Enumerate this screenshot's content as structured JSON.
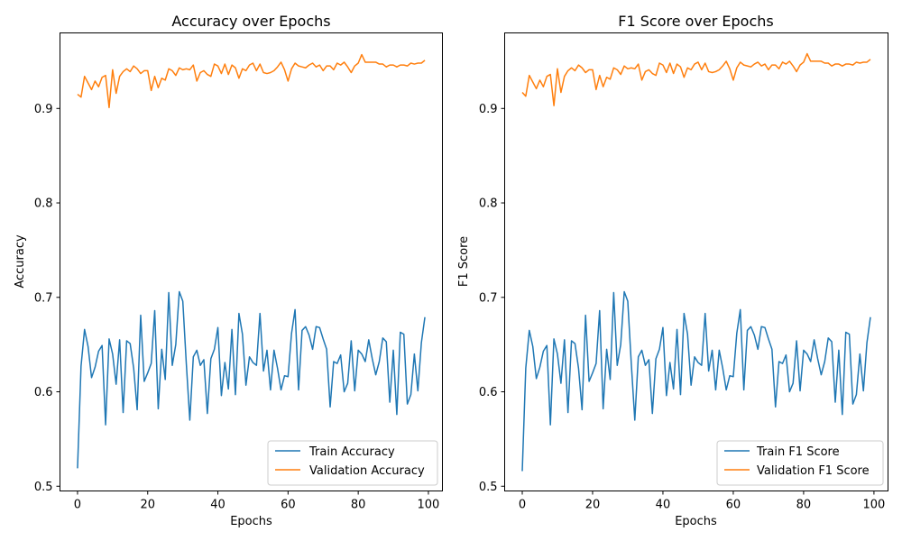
{
  "chart_data": [
    {
      "type": "line",
      "title": "Accuracy over Epochs",
      "xlabel": "Epochs",
      "ylabel": "Accuracy",
      "xlim": [
        -5,
        104
      ],
      "ylim": [
        0.495,
        0.98
      ],
      "xticks": [
        0,
        20,
        40,
        60,
        80,
        100
      ],
      "yticks": [
        0.5,
        0.6,
        0.7,
        0.8,
        0.9
      ],
      "xtick_labels": [
        "0",
        "20",
        "40",
        "60",
        "80",
        "100"
      ],
      "ytick_labels": [
        "0.5",
        "0.6",
        "0.7",
        "0.8",
        "0.9"
      ],
      "legend_position": "lower-right",
      "grid": false,
      "series": [
        {
          "name": "Train Accuracy",
          "color": "#1f77b4",
          "values": [
            0.519,
            0.627,
            0.666,
            0.648,
            0.615,
            0.626,
            0.643,
            0.649,
            0.565,
            0.656,
            0.64,
            0.608,
            0.655,
            0.578,
            0.654,
            0.651,
            0.625,
            0.581,
            0.681,
            0.611,
            0.62,
            0.63,
            0.686,
            0.582,
            0.645,
            0.613,
            0.705,
            0.628,
            0.65,
            0.706,
            0.696,
            0.63,
            0.57,
            0.637,
            0.644,
            0.628,
            0.634,
            0.577,
            0.635,
            0.645,
            0.668,
            0.596,
            0.631,
            0.603,
            0.666,
            0.597,
            0.683,
            0.661,
            0.607,
            0.637,
            0.631,
            0.628,
            0.683,
            0.622,
            0.644,
            0.602,
            0.644,
            0.625,
            0.602,
            0.617,
            0.616,
            0.662,
            0.687,
            0.602,
            0.665,
            0.669,
            0.66,
            0.645,
            0.669,
            0.668,
            0.656,
            0.645,
            0.584,
            0.632,
            0.63,
            0.639,
            0.6,
            0.609,
            0.654,
            0.601,
            0.644,
            0.64,
            0.632,
            0.655,
            0.635,
            0.618,
            0.632,
            0.657,
            0.653,
            0.589,
            0.644,
            0.576,
            0.663,
            0.661,
            0.587,
            0.597,
            0.64,
            0.601,
            0.652,
            0.679
          ]
        },
        {
          "name": "Validation Accuracy",
          "color": "#ff7f0e",
          "values": [
            0.915,
            0.912,
            0.934,
            0.927,
            0.92,
            0.929,
            0.923,
            0.933,
            0.935,
            0.901,
            0.941,
            0.916,
            0.934,
            0.939,
            0.942,
            0.939,
            0.945,
            0.942,
            0.937,
            0.94,
            0.94,
            0.919,
            0.934,
            0.922,
            0.932,
            0.93,
            0.942,
            0.94,
            0.935,
            0.943,
            0.941,
            0.942,
            0.941,
            0.946,
            0.929,
            0.938,
            0.94,
            0.936,
            0.934,
            0.947,
            0.945,
            0.937,
            0.947,
            0.936,
            0.946,
            0.943,
            0.932,
            0.942,
            0.94,
            0.946,
            0.948,
            0.94,
            0.947,
            0.938,
            0.937,
            0.938,
            0.94,
            0.944,
            0.949,
            0.941,
            0.929,
            0.942,
            0.948,
            0.945,
            0.944,
            0.943,
            0.946,
            0.948,
            0.944,
            0.946,
            0.94,
            0.945,
            0.945,
            0.941,
            0.948,
            0.946,
            0.949,
            0.944,
            0.938,
            0.945,
            0.948,
            0.957,
            0.949,
            0.949,
            0.949,
            0.949,
            0.947,
            0.947,
            0.944,
            0.946,
            0.946,
            0.944,
            0.946,
            0.946,
            0.945,
            0.948,
            0.947,
            0.948,
            0.948,
            0.951
          ]
        }
      ]
    },
    {
      "type": "line",
      "title": "F1 Score over Epochs",
      "xlabel": "Epochs",
      "ylabel": "F1 Score",
      "xlim": [
        -5,
        104
      ],
      "ylim": [
        0.495,
        0.98
      ],
      "xticks": [
        0,
        20,
        40,
        60,
        80,
        100
      ],
      "yticks": [
        0.5,
        0.6,
        0.7,
        0.8,
        0.9
      ],
      "xtick_labels": [
        "0",
        "20",
        "40",
        "60",
        "80",
        "100"
      ],
      "ytick_labels": [
        "0.5",
        "0.6",
        "0.7",
        "0.8",
        "0.9"
      ],
      "legend_position": "lower-right",
      "grid": false,
      "series": [
        {
          "name": "Train F1 Score",
          "color": "#1f77b4",
          "values": [
            0.516,
            0.625,
            0.665,
            0.648,
            0.614,
            0.626,
            0.643,
            0.649,
            0.565,
            0.656,
            0.64,
            0.609,
            0.655,
            0.578,
            0.654,
            0.651,
            0.625,
            0.581,
            0.681,
            0.611,
            0.62,
            0.63,
            0.686,
            0.582,
            0.645,
            0.613,
            0.705,
            0.628,
            0.65,
            0.706,
            0.696,
            0.63,
            0.57,
            0.637,
            0.644,
            0.628,
            0.634,
            0.577,
            0.635,
            0.645,
            0.668,
            0.596,
            0.631,
            0.603,
            0.666,
            0.597,
            0.683,
            0.661,
            0.607,
            0.637,
            0.631,
            0.628,
            0.683,
            0.622,
            0.644,
            0.602,
            0.644,
            0.625,
            0.602,
            0.617,
            0.616,
            0.662,
            0.687,
            0.602,
            0.665,
            0.669,
            0.66,
            0.645,
            0.669,
            0.668,
            0.656,
            0.645,
            0.584,
            0.632,
            0.63,
            0.639,
            0.6,
            0.609,
            0.654,
            0.601,
            0.644,
            0.64,
            0.632,
            0.655,
            0.635,
            0.618,
            0.632,
            0.657,
            0.653,
            0.589,
            0.644,
            0.576,
            0.663,
            0.661,
            0.587,
            0.597,
            0.64,
            0.601,
            0.652,
            0.679
          ]
        },
        {
          "name": "Validation F1 Score",
          "color": "#ff7f0e",
          "values": [
            0.917,
            0.913,
            0.935,
            0.928,
            0.921,
            0.93,
            0.923,
            0.934,
            0.936,
            0.903,
            0.942,
            0.917,
            0.934,
            0.94,
            0.943,
            0.94,
            0.946,
            0.943,
            0.938,
            0.941,
            0.941,
            0.92,
            0.935,
            0.923,
            0.933,
            0.931,
            0.943,
            0.941,
            0.936,
            0.945,
            0.942,
            0.943,
            0.942,
            0.947,
            0.93,
            0.939,
            0.941,
            0.937,
            0.935,
            0.948,
            0.946,
            0.938,
            0.948,
            0.937,
            0.947,
            0.944,
            0.933,
            0.943,
            0.941,
            0.947,
            0.949,
            0.941,
            0.948,
            0.939,
            0.938,
            0.939,
            0.941,
            0.945,
            0.95,
            0.942,
            0.93,
            0.943,
            0.949,
            0.946,
            0.945,
            0.944,
            0.947,
            0.949,
            0.945,
            0.947,
            0.941,
            0.946,
            0.946,
            0.942,
            0.949,
            0.947,
            0.95,
            0.945,
            0.939,
            0.946,
            0.949,
            0.958,
            0.95,
            0.95,
            0.95,
            0.95,
            0.948,
            0.948,
            0.945,
            0.947,
            0.947,
            0.945,
            0.947,
            0.947,
            0.946,
            0.949,
            0.948,
            0.949,
            0.949,
            0.952
          ]
        }
      ]
    }
  ]
}
